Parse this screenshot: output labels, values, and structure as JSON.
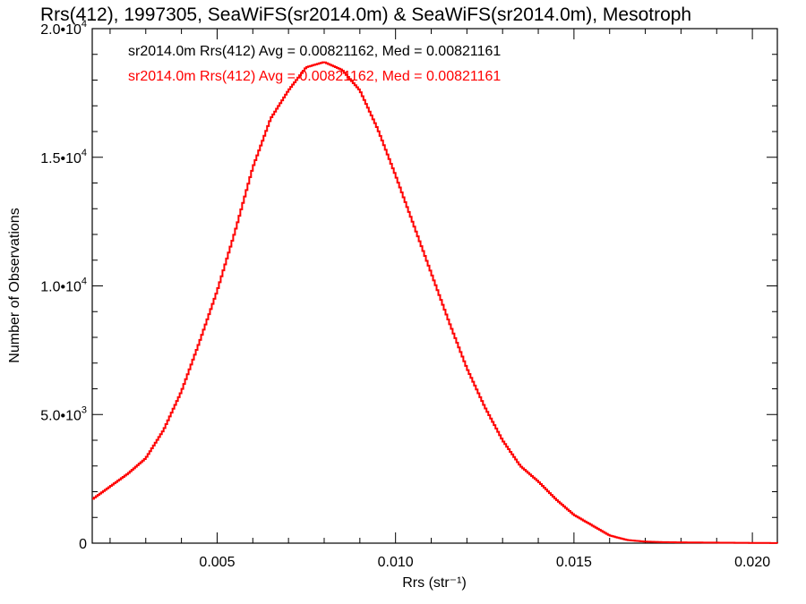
{
  "chart_data": {
    "type": "line",
    "title": "Rrs(412), 1997305, SeaWiFS(sr2014.0m) & SeaWiFS(sr2014.0m), Mesotroph",
    "xlabel": "Rrs (str⁻¹)",
    "ylabel": "Number of Observations",
    "xlim": [
      0.0015,
      0.0207
    ],
    "ylim": [
      0,
      20000
    ],
    "x_ticks": [
      {
        "value": 0.005,
        "label": "0.005"
      },
      {
        "value": 0.01,
        "label": "0.010"
      },
      {
        "value": 0.015,
        "label": "0.015"
      },
      {
        "value": 0.02,
        "label": "0.020"
      }
    ],
    "y_ticks": [
      {
        "value": 0,
        "mant": "0",
        "exp": ""
      },
      {
        "value": 5000,
        "mant": "5.0•10",
        "exp": "3"
      },
      {
        "value": 10000,
        "mant": "1.0•10",
        "exp": "4"
      },
      {
        "value": 15000,
        "mant": "1.5•10",
        "exp": "4"
      },
      {
        "value": 20000,
        "mant": "2.0•10",
        "exp": "4"
      }
    ],
    "legend": [
      {
        "text": "sr2014.0m Rrs(412) Avg = 0.00821162, Med = 0.00821161",
        "color": "#000000"
      },
      {
        "text": "sr2014.0m Rrs(412) Avg = 0.00821162, Med = 0.00821161",
        "color": "#ff0000"
      }
    ],
    "series": [
      {
        "color": "#ff0000",
        "x": [
          0.0015,
          0.002,
          0.0025,
          0.003,
          0.0035,
          0.004,
          0.0045,
          0.005,
          0.0055,
          0.006,
          0.0065,
          0.007,
          0.0075,
          0.008,
          0.0085,
          0.009,
          0.0095,
          0.01,
          0.0105,
          0.011,
          0.0115,
          0.012,
          0.0125,
          0.013,
          0.0135,
          0.014,
          0.0145,
          0.015,
          0.0155,
          0.016,
          0.0165,
          0.017,
          0.0175,
          0.018,
          0.019,
          0.02,
          0.0207
        ],
        "values": [
          1700,
          2200,
          2700,
          3300,
          4400,
          5900,
          7800,
          9800,
          12100,
          14600,
          16500,
          17600,
          18500,
          18700,
          18400,
          17600,
          16100,
          14300,
          12400,
          10500,
          8600,
          6800,
          5300,
          4000,
          3000,
          2400,
          1700,
          1100,
          700,
          300,
          120,
          60,
          40,
          30,
          20,
          10,
          5
        ]
      }
    ]
  }
}
